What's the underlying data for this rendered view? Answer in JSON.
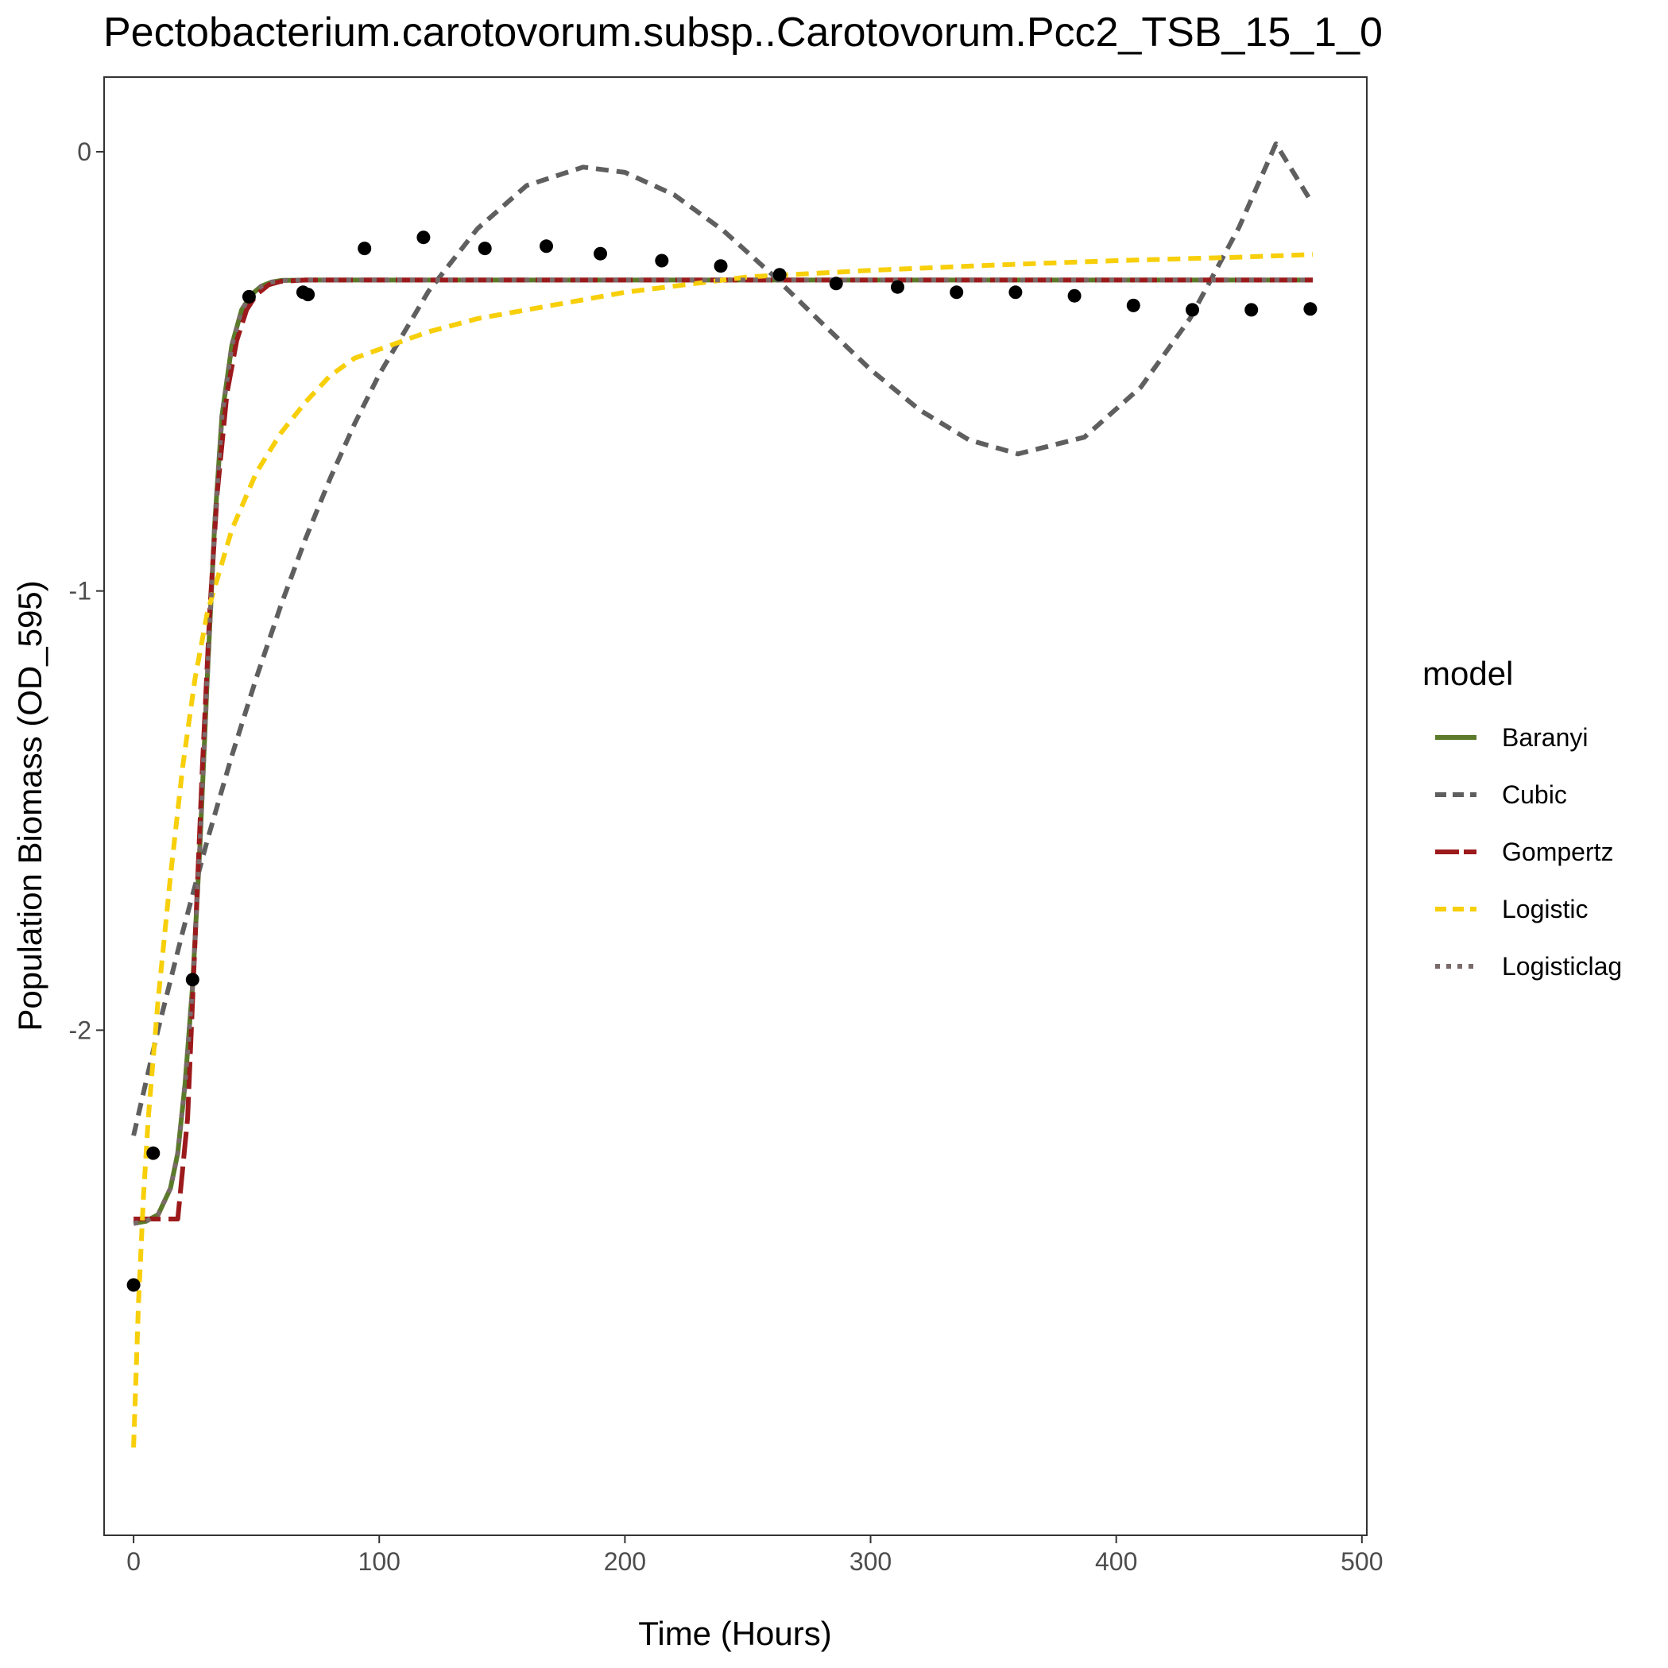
{
  "chart_data": {
    "type": "line",
    "title": "Pectobacterium.carotovorum.subsp..Carotovorum.Pcc2_TSB_15_1_0",
    "xlabel": "Time (Hours)",
    "ylabel": "Population Biomass (OD_595)",
    "xlim": [
      -12,
      502
    ],
    "ylim": [
      -3.15,
      0.17
    ],
    "x_ticks": [
      0,
      100,
      200,
      300,
      400,
      500
    ],
    "x_tick_labels": [
      "0",
      "100",
      "200",
      "300",
      "400",
      "500"
    ],
    "y_ticks": [
      0,
      -1,
      -2
    ],
    "y_tick_labels": [
      "0",
      "-1",
      "-2"
    ],
    "grid": false,
    "legend": {
      "title": "model",
      "position": "right"
    },
    "points": {
      "x": [
        0,
        8,
        24,
        47,
        69,
        71,
        94,
        118,
        143,
        168,
        190,
        215,
        239,
        263,
        286,
        311,
        335,
        359,
        383,
        407,
        431,
        455,
        479
      ],
      "y": [
        -2.58,
        -2.28,
        -1.885,
        -0.33,
        -0.32,
        -0.325,
        -0.22,
        -0.195,
        -0.22,
        -0.215,
        -0.232,
        -0.248,
        -0.26,
        -0.28,
        -0.3,
        -0.308,
        -0.32,
        -0.32,
        -0.328,
        -0.35,
        -0.36,
        -0.36,
        -0.358
      ]
    },
    "series": [
      {
        "name": "Baranyi",
        "color": "#5b7a2a",
        "dash": "solid",
        "x": [
          0,
          5,
          10,
          15,
          18,
          21,
          24,
          27,
          30,
          33,
          36,
          40,
          44,
          48,
          52,
          56,
          60,
          70,
          100,
          200,
          300,
          400,
          480
        ],
        "y": [
          -2.44,
          -2.435,
          -2.42,
          -2.36,
          -2.28,
          -2.12,
          -1.9,
          -1.58,
          -1.2,
          -0.85,
          -0.6,
          -0.44,
          -0.36,
          -0.325,
          -0.306,
          -0.297,
          -0.293,
          -0.292,
          -0.292,
          -0.292,
          -0.292,
          -0.292,
          -0.292
        ]
      },
      {
        "name": "Cubic",
        "color": "#5f5f5f",
        "dash": "dashed",
        "x": [
          0,
          10,
          20,
          30,
          40,
          50,
          60,
          70,
          80,
          90,
          100,
          120,
          140,
          160,
          183,
          200,
          220,
          240,
          260,
          280,
          300,
          320,
          340,
          360,
          387,
          410,
          430,
          450,
          465,
          479
        ],
        "y": [
          -2.24,
          -1.998,
          -1.776,
          -1.568,
          -1.375,
          -1.197,
          -1.032,
          -0.881,
          -0.744,
          -0.619,
          -0.507,
          -0.318,
          -0.175,
          -0.077,
          -0.035,
          -0.047,
          -0.098,
          -0.179,
          -0.28,
          -0.389,
          -0.496,
          -0.588,
          -0.656,
          -0.688,
          -0.65,
          -0.536,
          -0.38,
          -0.172,
          0.018,
          -0.11
        ]
      },
      {
        "name": "Gompertz",
        "color": "#9c1a1c",
        "dash": "longdash",
        "x": [
          0,
          10,
          18,
          22,
          25,
          28,
          31,
          34,
          38,
          42,
          46,
          50,
          55,
          60,
          70,
          100,
          200,
          300,
          400,
          480
        ],
        "y": [
          -2.43,
          -2.43,
          -2.43,
          -2.2,
          -1.8,
          -1.4,
          -1.05,
          -0.78,
          -0.55,
          -0.43,
          -0.36,
          -0.325,
          -0.303,
          -0.295,
          -0.292,
          -0.292,
          -0.292,
          -0.292,
          -0.292,
          -0.292
        ]
      },
      {
        "name": "Logistic",
        "color": "#f7cf0a",
        "dash": "dashed",
        "x": [
          0,
          2,
          4,
          6,
          10,
          15,
          20,
          25,
          30,
          40,
          50,
          60,
          70,
          80,
          90,
          100,
          120,
          140,
          160,
          180,
          200,
          250,
          300,
          350,
          400,
          450,
          480
        ],
        "y": [
          -2.95,
          -2.62,
          -2.38,
          -2.2,
          -1.93,
          -1.65,
          -1.4,
          -1.2,
          -1.05,
          -0.86,
          -0.73,
          -0.64,
          -0.57,
          -0.51,
          -0.47,
          -0.45,
          -0.41,
          -0.38,
          -0.36,
          -0.34,
          -0.32,
          -0.285,
          -0.27,
          -0.258,
          -0.248,
          -0.24,
          -0.234
        ]
      },
      {
        "name": "Logisticlag",
        "color": "#7a6a6a",
        "dash": "dotted",
        "x": [
          0,
          5,
          10,
          15,
          18,
          21,
          24,
          27,
          30,
          33,
          36,
          40,
          44,
          48,
          52,
          56,
          60,
          70,
          100,
          200,
          300,
          400,
          480
        ],
        "y": [
          -2.44,
          -2.435,
          -2.42,
          -2.36,
          -2.28,
          -2.12,
          -1.9,
          -1.58,
          -1.2,
          -0.85,
          -0.6,
          -0.44,
          -0.36,
          -0.325,
          -0.306,
          -0.297,
          -0.293,
          -0.292,
          -0.292,
          -0.292,
          -0.292,
          -0.292,
          -0.292
        ]
      }
    ]
  }
}
